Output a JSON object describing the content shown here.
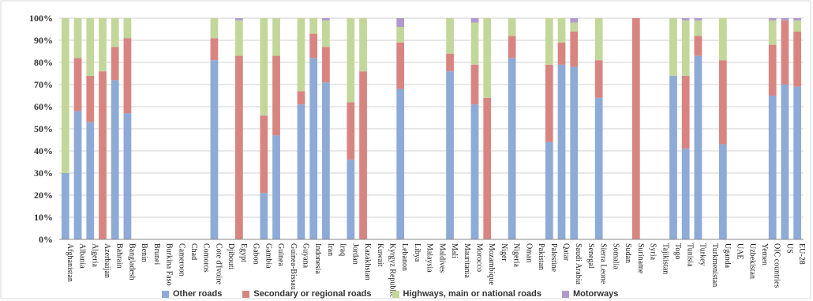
{
  "chart_data": {
    "type": "bar",
    "stacked": true,
    "title": "",
    "xlabel": "",
    "ylabel": "",
    "ylim": [
      0,
      100
    ],
    "yticks": [
      "0%",
      "10%",
      "20%",
      "30%",
      "40%",
      "50%",
      "60%",
      "70%",
      "80%",
      "90%",
      "100%"
    ],
    "grid": true,
    "legend_position": "bottom",
    "categories": [
      "Afghanistan",
      "Albania",
      "Algeria",
      "Azerbaijan",
      "Bahrain",
      "Bangladesh",
      "Benin",
      "Brunei",
      "Burkina Faso",
      "Cameroon",
      "Chad",
      "Comoros",
      "Cote d'Ivoire",
      "Djibouti",
      "Egypt",
      "Gabon",
      "Gambia",
      "Guinea",
      "Guinea-Bissau",
      "Guyana",
      "Indonesia",
      "Iran",
      "Iraq",
      "Jordan",
      "Kazakhstan",
      "Kuwait",
      "Kyrgyz Republic",
      "Lebanon",
      "Libya",
      "Malaysia",
      "Maldives",
      "Mali",
      "Mauritania",
      "Morocco",
      "Mozambique",
      "Niger",
      "Nigeria",
      "Oman",
      "Pakistan",
      "Palestine",
      "Qatar",
      "Saudi Arabia",
      "Senegal",
      "Sierra Leone",
      "Somalia",
      "Sudan",
      "Suriname",
      "Syria",
      "Tajikistan",
      "Togo",
      "Tunisia",
      "Turkey",
      "Turkmenistan",
      "Uganda",
      "UAE",
      "Uzbekistan",
      "Yemen",
      "OIC countries",
      "US",
      "EU-28"
    ],
    "series": [
      {
        "name": "Other roads",
        "color": "#8eaad6",
        "values": [
          30,
          58,
          53,
          0,
          72,
          57,
          0,
          0,
          0,
          0,
          0,
          0,
          81,
          0,
          0,
          0,
          21,
          47,
          0,
          61,
          82,
          71,
          0,
          36,
          0,
          0,
          0,
          68,
          0,
          0,
          0,
          76,
          0,
          61,
          0,
          0,
          82,
          0,
          0,
          44,
          79,
          78,
          0,
          64,
          0,
          0,
          0,
          0,
          0,
          74,
          41,
          83,
          0,
          43,
          0,
          0,
          0,
          65,
          70,
          69
        ]
      },
      {
        "name": "Secondary or regional roads",
        "color": "#d88582",
        "values": [
          0,
          24,
          21,
          76,
          15,
          34,
          0,
          0,
          0,
          0,
          0,
          0,
          10,
          0,
          83,
          0,
          35,
          36,
          0,
          6,
          11,
          16,
          0,
          26,
          76,
          0,
          0,
          21,
          0,
          0,
          0,
          8,
          0,
          18,
          64,
          0,
          10,
          0,
          0,
          35,
          10,
          16,
          0,
          17,
          0,
          0,
          100,
          0,
          0,
          0,
          33,
          9,
          0,
          38,
          0,
          0,
          0,
          23,
          29,
          25
        ]
      },
      {
        "name": "Highways, main or national roads",
        "color": "#c3d79b",
        "values": [
          70,
          18,
          26,
          24,
          13,
          9,
          0,
          0,
          0,
          0,
          0,
          0,
          9,
          0,
          16,
          0,
          44,
          17,
          0,
          33,
          7,
          12,
          0,
          38,
          24,
          0,
          0,
          7,
          0,
          0,
          0,
          16,
          0,
          19,
          36,
          0,
          8,
          0,
          0,
          21,
          11,
          4,
          0,
          19,
          0,
          0,
          0,
          0,
          0,
          26,
          25,
          7,
          0,
          19,
          0,
          0,
          0,
          11,
          0,
          5
        ]
      },
      {
        "name": "Motorways",
        "color": "#b09acc",
        "values": [
          0,
          0,
          0,
          0,
          0,
          0,
          0,
          0,
          0,
          0,
          0,
          0,
          0,
          0,
          1,
          0,
          0,
          0,
          0,
          0,
          0,
          1,
          0,
          0,
          0,
          0,
          0,
          4,
          0,
          0,
          0,
          0,
          0,
          2,
          0,
          0,
          0,
          0,
          0,
          0,
          0,
          2,
          0,
          0,
          0,
          0,
          0,
          0,
          0,
          0,
          1,
          1,
          0,
          0,
          0,
          0,
          0,
          1,
          1,
          1
        ]
      }
    ]
  }
}
